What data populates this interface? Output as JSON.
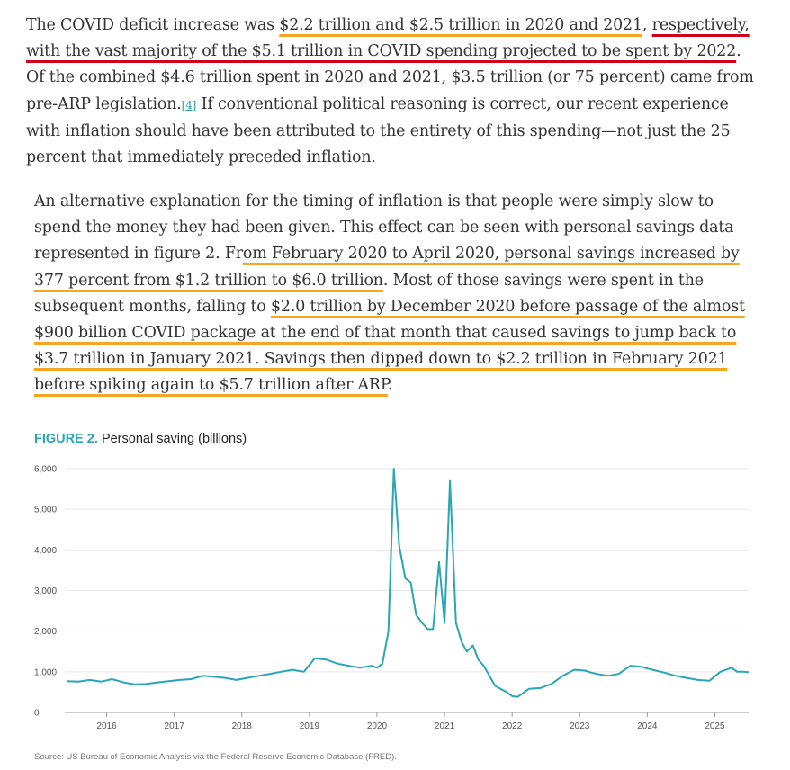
{
  "article": {
    "p1": {
      "s1": "The COVID deficit increase was ",
      "s2": "$2.2 trillion and $2.5 trillion in 2020 and 2021",
      "s3": ", ",
      "s4": "respectively, with the vast majority of the $5.1 trillion in COVID spending projected to be spent by 2022",
      "s5": ". Of the combined $4.6 trillion spent in 2020 and 2021, $3.5 trillion (or 75 percent) came from pre-ARP legislation.",
      "fn": "[4]",
      "s6": " If conventional political reasoning is correct, our recent experience with inflation should have been attributed to the entirety of this spending—not just the 25 percent that immediately preceded inflation."
    },
    "p2": {
      "s1": "An alternative explanation for the timing of inflation is that people were simply slow to spend the money they had been given. This effect can be seen with personal savings data represented in figure 2. Fr",
      "s2": "om February 2020 to April 2020, personal savings increased by 377 percent from $1.2 trillion to $6.0 trillion",
      "s3": ". Most of those savings were spent in the subsequent months, falling to ",
      "s4": "$2.0 trillion by December 2020 before passage of the almost $900 billion COVID package at the end of that month that caused savings to jump back to $3.7 trillion in January 2021. Savings then dipped down to $2.2 trillion in February 2021 before spiking again to $5.7 trillion after ARP",
      "s5": "."
    }
  },
  "figure": {
    "label": "FIGURE 2.",
    "title": "Personal saving (billions)",
    "source": "Source: US Bureau of Economic Analysis via the Federal Reserve Economic Database (FRED)."
  },
  "colors": {
    "line": "#2aa6b4",
    "highlight_orange": "#f5a623",
    "highlight_red": "#d0021b"
  },
  "chart_data": {
    "type": "line",
    "title": "Personal saving (billions)",
    "xlabel": "",
    "ylabel": "",
    "ylim": [
      0,
      6000
    ],
    "y_ticks": [
      0,
      1000,
      2000,
      3000,
      4000,
      5000,
      6000
    ],
    "y_tick_labels": [
      "0",
      "1,000",
      "2,000",
      "3,000",
      "4,000",
      "5,000",
      "6,000"
    ],
    "x_ticks": [
      2016,
      2017,
      2018,
      2019,
      2020,
      2021,
      2022,
      2023,
      2024,
      2025
    ],
    "x_tick_labels": [
      "2016",
      "2017",
      "2018",
      "2019",
      "2020",
      "2021",
      "2022",
      "2023",
      "2024",
      "2025"
    ],
    "xlim": [
      2015.38,
      2025.5
    ],
    "grid": "horizontal",
    "series": [
      {
        "x": [
          2015.42,
          2015.58,
          2015.75,
          2015.92,
          2016.08,
          2016.25,
          2016.42,
          2016.58,
          2016.75,
          2016.92,
          2017.08,
          2017.25,
          2017.42,
          2017.58,
          2017.75,
          2017.92,
          2018.08,
          2018.25,
          2018.42,
          2018.58,
          2018.75,
          2018.92,
          2019.08,
          2019.25,
          2019.42,
          2019.58,
          2019.75,
          2019.92,
          2020.0,
          2020.08,
          2020.17,
          2020.25,
          2020.33,
          2020.42,
          2020.5,
          2020.58,
          2020.67,
          2020.75,
          2020.83,
          2020.92,
          2021.0,
          2021.08,
          2021.17,
          2021.25,
          2021.33,
          2021.42,
          2021.5,
          2021.58,
          2021.75,
          2021.92,
          2022.0,
          2022.08,
          2022.25,
          2022.42,
          2022.5,
          2022.58,
          2022.75,
          2022.92,
          2023.08,
          2023.17,
          2023.25,
          2023.42,
          2023.58,
          2023.75,
          2023.92,
          2024.0,
          2024.08,
          2024.25,
          2024.42,
          2024.58,
          2024.75,
          2024.92,
          2025.08,
          2025.25,
          2025.33,
          2025.42,
          2025.5
        ],
        "values": [
          770,
          760,
          800,
          760,
          820,
          740,
          690,
          700,
          740,
          770,
          800,
          820,
          900,
          880,
          850,
          800,
          850,
          900,
          950,
          1000,
          1050,
          1000,
          1330,
          1300,
          1200,
          1150,
          1100,
          1150,
          1100,
          1200,
          2000,
          6000,
          4100,
          3300,
          3200,
          2400,
          2200,
          2050,
          2050,
          3700,
          2200,
          5700,
          2200,
          1750,
          1500,
          1650,
          1300,
          1150,
          650,
          500,
          400,
          380,
          580,
          600,
          650,
          700,
          900,
          1050,
          1030,
          980,
          950,
          900,
          950,
          1150,
          1120,
          1080,
          1050,
          980,
          900,
          850,
          800,
          780,
          1000,
          1100,
          1000,
          1000,
          990
        ]
      }
    ]
  }
}
